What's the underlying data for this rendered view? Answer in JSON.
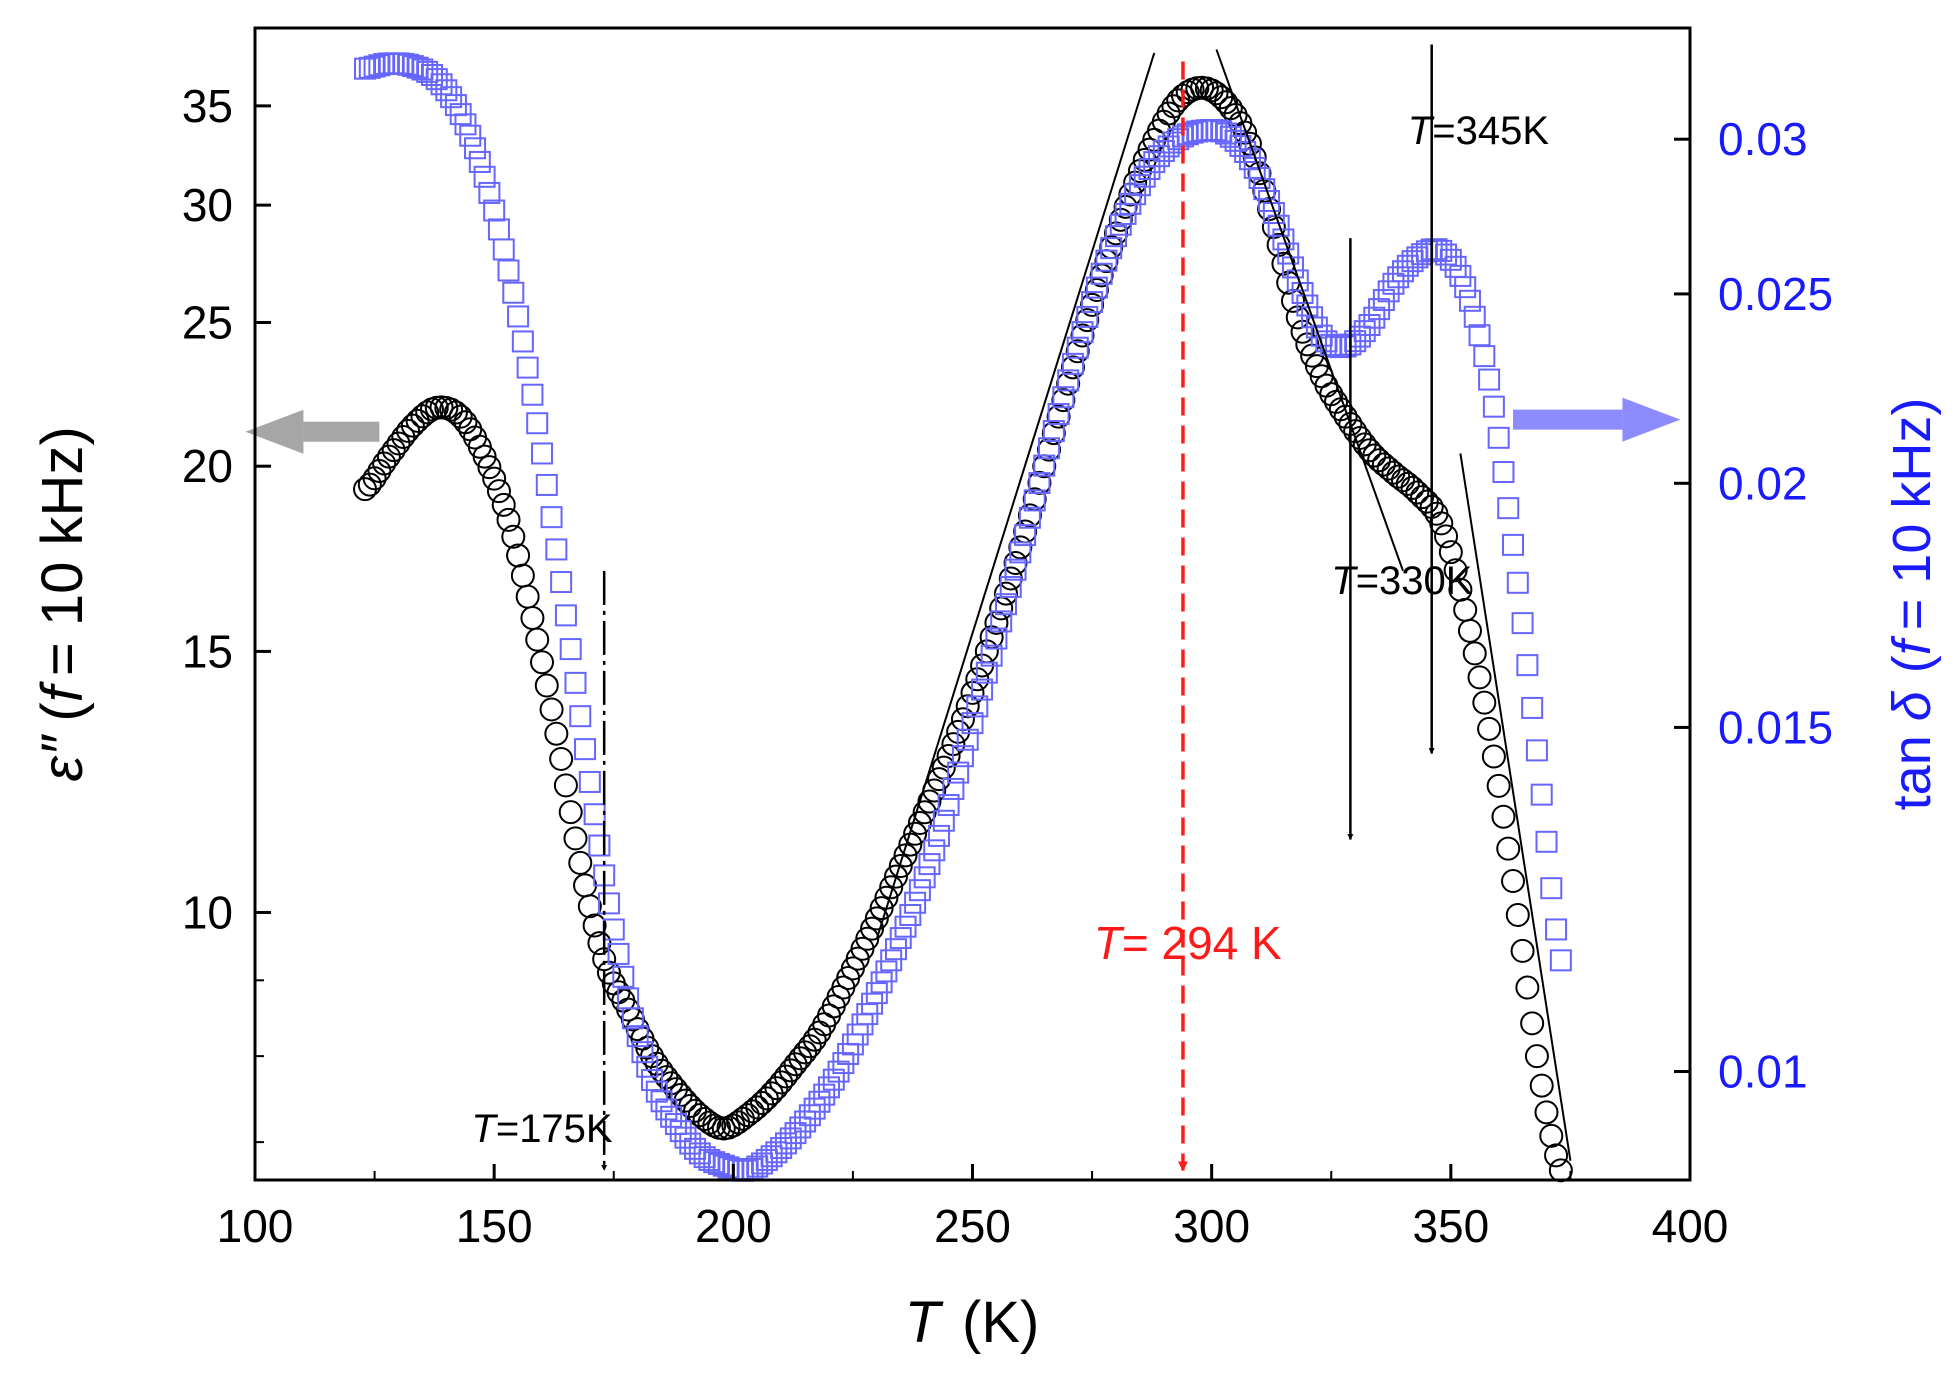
{
  "chart_data": {
    "type": "scatter",
    "title": "",
    "xlabel": {
      "symbol": "T",
      "unit": "(K)"
    },
    "ylabel_left": {
      "symbol": "ε″",
      "rest": "(",
      "f_symbol": "f",
      "condition": "= 10 kHz)"
    },
    "ylabel_right": {
      "prefix": "tan",
      "symbol": "δ",
      "rest": "(",
      "f_symbol": "f",
      "condition": "= 10 kHz)"
    },
    "xlim": [
      100,
      400
    ],
    "ylim_left": [
      6.6,
      39.5
    ],
    "ylim_right": [
      0.0088,
      0.0342
    ],
    "y_scale": "log",
    "xticks": [
      {
        "value": 100,
        "label": "100"
      },
      {
        "value": 150,
        "label": "150"
      },
      {
        "value": 200,
        "label": "200"
      },
      {
        "value": 250,
        "label": "250"
      },
      {
        "value": 300,
        "label": "300"
      },
      {
        "value": 350,
        "label": "350"
      },
      {
        "value": 400,
        "label": "400"
      }
    ],
    "yticks_left": [
      {
        "value": 10,
        "label": "10"
      },
      {
        "value": 15,
        "label": "15"
      },
      {
        "value": 20,
        "label": "20"
      },
      {
        "value": 25,
        "label": "25"
      },
      {
        "value": 30,
        "label": "30"
      },
      {
        "value": 35,
        "label": "35"
      }
    ],
    "yticks_right": [
      {
        "value": 0.01,
        "label": "0.01"
      },
      {
        "value": 0.015,
        "label": "0.015"
      },
      {
        "value": 0.02,
        "label": "0.02"
      },
      {
        "value": 0.025,
        "label": "0.025"
      },
      {
        "value": 0.03,
        "label": "0.03"
      }
    ],
    "series": [
      {
        "name": "ε″ (f = 10 kHz)",
        "axis": "left",
        "marker": "circle",
        "color": "#000000",
        "x": [
          123,
          128,
          133,
          138,
          143,
          148,
          153,
          158,
          163,
          168,
          173,
          178,
          183,
          188,
          193,
          198,
          203,
          208,
          213,
          218,
          223,
          228,
          233,
          238,
          243,
          248,
          253,
          258,
          263,
          268,
          273,
          278,
          283,
          288,
          293,
          298,
          303,
          308,
          313,
          318,
          323,
          328,
          333,
          338,
          343,
          348,
          353,
          358,
          363,
          368,
          373
        ],
        "y": [
          19.3,
          20.3,
          21.3,
          21.9,
          21.6,
          20.3,
          18.4,
          15.8,
          13.2,
          10.8,
          9.3,
          8.6,
          8.0,
          7.6,
          7.3,
          7.15,
          7.3,
          7.55,
          7.9,
          8.3,
          8.9,
          9.6,
          10.4,
          11.3,
          12.3,
          13.5,
          15.0,
          16.8,
          19.0,
          21.6,
          24.5,
          27.5,
          30.5,
          33.2,
          35.3,
          36.0,
          35.2,
          33.0,
          29.0,
          25.2,
          23.0,
          21.6,
          20.5,
          19.8,
          19.2,
          18.3,
          16.0,
          13.3,
          10.5,
          8.0,
          6.7
        ]
      },
      {
        "name": "tan δ (f = 10 kHz)",
        "axis": "right",
        "marker": "square",
        "color": "#6666ff",
        "x": [
          123,
          128,
          133,
          138,
          143,
          148,
          153,
          158,
          163,
          168,
          173,
          178,
          183,
          188,
          193,
          198,
          203,
          208,
          213,
          218,
          223,
          228,
          233,
          238,
          243,
          248,
          253,
          258,
          263,
          268,
          273,
          278,
          283,
          288,
          293,
          298,
          303,
          308,
          313,
          318,
          323,
          328,
          333,
          338,
          343,
          348,
          353,
          358,
          363,
          368,
          373
        ],
        "y": [
          0.0326,
          0.0328,
          0.0327,
          0.0322,
          0.0309,
          0.0287,
          0.0257,
          0.0222,
          0.0185,
          0.0152,
          0.0126,
          0.0109,
          0.0099,
          0.0094,
          0.00908,
          0.00895,
          0.0089,
          0.00905,
          0.0093,
          0.00965,
          0.0101,
          0.0107,
          0.0114,
          0.0122,
          0.0132,
          0.0145,
          0.016,
          0.0177,
          0.0196,
          0.0217,
          0.0239,
          0.026,
          0.0278,
          0.0292,
          0.03,
          0.0303,
          0.0302,
          0.0293,
          0.0275,
          0.0254,
          0.0238,
          0.0235,
          0.0241,
          0.0253,
          0.0261,
          0.0263,
          0.0252,
          0.0226,
          0.0186,
          0.0146,
          0.0114
        ]
      }
    ],
    "vertical_arrows": [
      {
        "x": 294,
        "from_left": 37.5,
        "to_left": 6.7,
        "color": "#ff1a1a",
        "style": "dashed"
      },
      {
        "x": 173,
        "from_left": 17.0,
        "to_left": 6.7,
        "color": "#000000",
        "style": "dash-dot"
      },
      {
        "x": 329,
        "from_left": 28.5,
        "to_left": 11.2,
        "color": "#000000",
        "style": "solid"
      },
      {
        "x": 346,
        "from_left": 38.5,
        "to_left": 12.8,
        "color": "#000000",
        "style": "solid"
      }
    ],
    "tangent_lines": [
      {
        "x1": 288,
        "y1": 38.0,
        "x2": 230,
        "y2": 9.6
      },
      {
        "x1": 301,
        "y1": 38.2,
        "x2": 340,
        "y2": 17.0
      },
      {
        "x1": 352,
        "y1": 20.4,
        "x2": 375,
        "y2": 6.8
      }
    ],
    "axis_indicators": [
      {
        "points_to": "left",
        "x_from": 126,
        "x_to": 98,
        "y_left": 21.1,
        "color": "#888888"
      },
      {
        "points_to": "right",
        "x_from": 363,
        "x_to": 398,
        "y_left": 21.5,
        "color": "#6666ff"
      }
    ],
    "annotations": [
      {
        "symbol": "T",
        "text": "= 294 K",
        "x": 295,
        "y_left": 9.3,
        "color": "red"
      },
      {
        "symbol": "T",
        "text": "=175K",
        "x": 160,
        "y_left": 7.0,
        "color": "black"
      },
      {
        "symbol": "T",
        "text": "=330K",
        "x": 325,
        "y_left": 16.4,
        "color": "black"
      },
      {
        "symbol": "T",
        "text": "=345K",
        "x": 341,
        "y_left": 33.0,
        "color": "black"
      }
    ]
  }
}
